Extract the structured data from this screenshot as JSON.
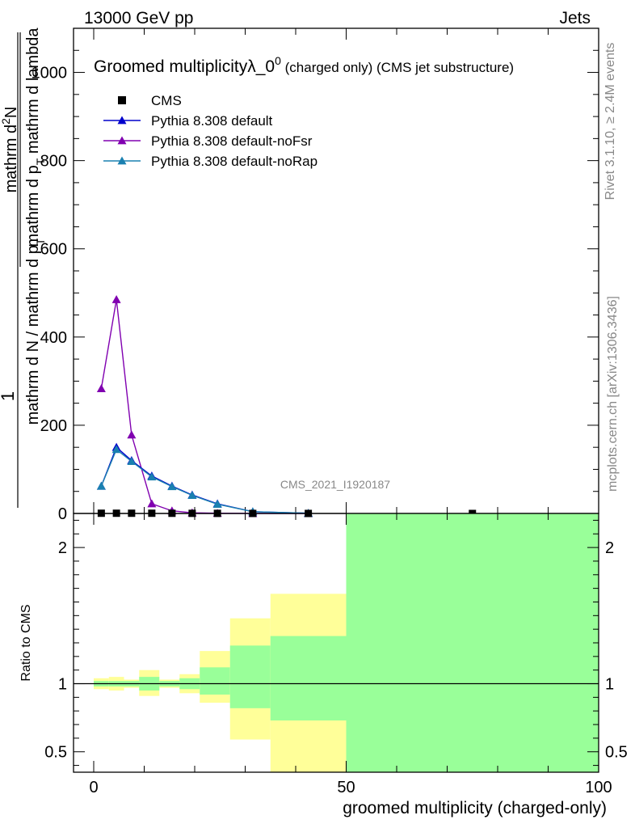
{
  "header": {
    "left": "13000 GeV pp",
    "right": "Jets"
  },
  "side_labels": {
    "rivet": "Rivet 3.1.10, ≥ 2.4M events",
    "mcplots": "mcplots.cern.ch [arXiv:1306.3436]"
  },
  "chart_data": [
    {
      "type": "line",
      "title_main": "Groomed multiplicity",
      "title_lambda": "λ_0",
      "title_sup": "0",
      "title_suffix": "(charged only) (CMS jet substructure)",
      "analysis_tag": "CMS_2021_I1920187",
      "ylabel_top": "1",
      "ylabel_mid": "mathrm d N / mathrm d p",
      "ylabel_denom": "mathrm d N",
      "ylabel_num": "mathrm d",
      "ylabel_rest": "mathrm d p",
      "ylabel_end": "mathrm d lambda",
      "ylabel_T": "T",
      "ylabel_sup2": "2",
      "xlim": [
        -4,
        100
      ],
      "ylim": [
        0,
        1100
      ],
      "yticks": [
        0,
        200,
        400,
        600,
        800,
        1000
      ],
      "ytick_labels": [
        "0",
        "200",
        "400",
        "600",
        "800",
        "1000"
      ],
      "legend_position": "top-left",
      "series": [
        {
          "name": "CMS",
          "marker": "square",
          "color": "#000000",
          "x": [
            1.5,
            4.5,
            7.5,
            11.5,
            15.5,
            19.5,
            24.5,
            31.5,
            42.5,
            75
          ],
          "y": [
            0.5,
            0.5,
            0.5,
            0.5,
            0.4,
            0.3,
            0.2,
            0.1,
            0.05,
            0.01
          ]
        },
        {
          "name": "Pythia 8.308 default",
          "marker": "triangle",
          "color": "#0000cc",
          "x": [
            1.5,
            4.5,
            7.5,
            11.5,
            15.5,
            19.5,
            24.5,
            31.5,
            42.5
          ],
          "y": [
            62,
            150,
            120,
            85,
            62,
            42,
            22,
            4,
            0.5
          ]
        },
        {
          "name": "Pythia 8.308 default-noFsr",
          "marker": "triangle",
          "color": "#8000b0",
          "x": [
            1.5,
            4.5,
            7.5,
            11.5,
            15.5,
            19.5,
            24.5,
            31.5,
            42.5
          ],
          "y": [
            283,
            485,
            178,
            22,
            6,
            1.5,
            0.5,
            0.1,
            0.01
          ]
        },
        {
          "name": "Pythia 8.308 default-noRap",
          "marker": "triangle",
          "color": "#1a80b0",
          "x": [
            1.5,
            4.5,
            7.5,
            11.5,
            15.5,
            19.5,
            24.5,
            31.5,
            42.5
          ],
          "y": [
            62,
            145,
            118,
            83,
            61,
            41,
            21,
            4,
            0.5
          ]
        }
      ]
    },
    {
      "type": "area",
      "ylabel": "Ratio to CMS",
      "xlabel": "groomed multiplicity (charged-only)",
      "xlim": [
        -4,
        100
      ],
      "ylim": [
        0.35,
        2.25
      ],
      "yticks": [
        0.5,
        1,
        2
      ],
      "ytick_labels": [
        "0.5",
        "1",
        "2"
      ],
      "xticks": [
        0,
        50,
        100
      ],
      "xtick_labels": [
        "0",
        "50",
        "100"
      ],
      "bands": [
        {
          "x0": 0,
          "x1": 3,
          "yellow": [
            0.96,
            1.04
          ],
          "green": [
            0.98,
            1.02
          ]
        },
        {
          "x0": 3,
          "x1": 6,
          "yellow": [
            0.95,
            1.05
          ],
          "green": [
            0.98,
            1.02
          ]
        },
        {
          "x0": 6,
          "x1": 9,
          "yellow": [
            0.97,
            1.03
          ],
          "green": [
            0.98,
            1.02
          ]
        },
        {
          "x0": 9,
          "x1": 13,
          "yellow": [
            0.91,
            1.1
          ],
          "green": [
            0.95,
            1.05
          ]
        },
        {
          "x0": 13,
          "x1": 17,
          "yellow": [
            0.97,
            1.03
          ],
          "green": [
            0.98,
            1.02
          ]
        },
        {
          "x0": 17,
          "x1": 21,
          "yellow": [
            0.93,
            1.07
          ],
          "green": [
            0.96,
            1.04
          ]
        },
        {
          "x0": 21,
          "x1": 27,
          "yellow": [
            0.86,
            1.24
          ],
          "green": [
            0.92,
            1.12
          ]
        },
        {
          "x0": 27,
          "x1": 35,
          "yellow": [
            0.59,
            1.48
          ],
          "green": [
            0.82,
            1.28
          ]
        },
        {
          "x0": 35,
          "x1": 50,
          "yellow": [
            0.35,
            1.66
          ],
          "green": [
            0.73,
            1.35
          ]
        },
        {
          "x0": 50,
          "x1": 100,
          "yellow": [
            0.35,
            2.25
          ],
          "green": [
            0.35,
            2.25
          ]
        }
      ]
    }
  ]
}
